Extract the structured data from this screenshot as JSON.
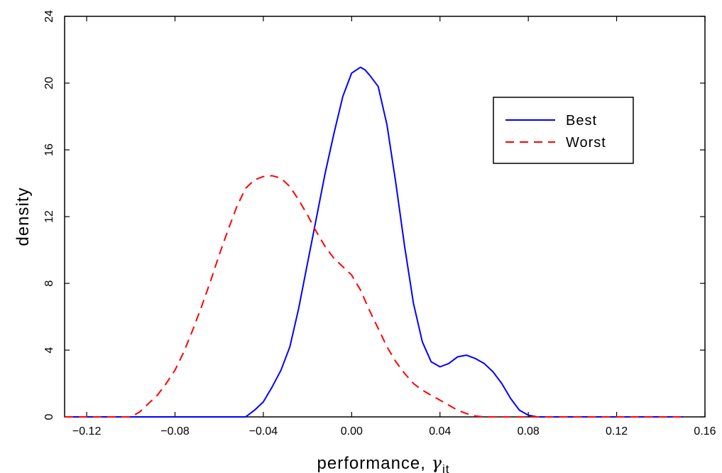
{
  "chart_data": {
    "type": "line",
    "title": "",
    "xlabel": "performance, ",
    "xlabel_symbol": "γ",
    "xlabel_subscript": "it",
    "ylabel": "density",
    "xlim": [
      -0.13,
      0.16
    ],
    "ylim": [
      0,
      24
    ],
    "x_ticks": [
      -0.12,
      -0.08,
      -0.04,
      0.0,
      0.04,
      0.08,
      0.12,
      0.16
    ],
    "x_tick_labels": [
      "−0.12",
      "−0.08",
      "−0.04",
      "0.00",
      "0.04",
      "0.08",
      "0.12",
      "0.16"
    ],
    "y_ticks": [
      0,
      4,
      8,
      12,
      16,
      20,
      24
    ],
    "y_tick_labels": [
      "0",
      "4",
      "8",
      "12",
      "16",
      "20",
      "24"
    ],
    "grid": false,
    "legend_position": "top-right",
    "series": [
      {
        "name": "Best",
        "color": "#0000ff",
        "style": "solid",
        "x": [
          -0.13,
          -0.048,
          -0.044,
          -0.04,
          -0.036,
          -0.032,
          -0.028,
          -0.024,
          -0.02,
          -0.016,
          -0.012,
          -0.008,
          -0.004,
          0.0,
          0.004,
          0.006,
          0.008,
          0.012,
          0.016,
          0.02,
          0.024,
          0.028,
          0.032,
          0.036,
          0.04,
          0.044,
          0.048,
          0.052,
          0.056,
          0.06,
          0.064,
          0.068,
          0.072,
          0.076,
          0.08,
          0.084,
          0.15
        ],
        "values": [
          0,
          0,
          0.4,
          0.9,
          1.8,
          2.8,
          4.2,
          6.5,
          9.2,
          11.9,
          14.6,
          17.0,
          19.2,
          20.6,
          20.95,
          20.8,
          20.5,
          19.8,
          17.5,
          14.0,
          10.2,
          6.8,
          4.5,
          3.3,
          3.0,
          3.2,
          3.6,
          3.7,
          3.5,
          3.2,
          2.7,
          2.0,
          1.1,
          0.4,
          0.1,
          0,
          0
        ]
      },
      {
        "name": "Worst",
        "color": "#ff0000",
        "style": "dashed",
        "x": [
          -0.13,
          -0.1,
          -0.096,
          -0.092,
          -0.088,
          -0.084,
          -0.08,
          -0.076,
          -0.072,
          -0.068,
          -0.064,
          -0.06,
          -0.056,
          -0.052,
          -0.048,
          -0.044,
          -0.04,
          -0.036,
          -0.032,
          -0.028,
          -0.024,
          -0.02,
          -0.016,
          -0.012,
          -0.008,
          -0.004,
          0.0,
          0.004,
          0.008,
          0.012,
          0.016,
          0.02,
          0.024,
          0.028,
          0.032,
          0.036,
          0.04,
          0.044,
          0.048,
          0.052,
          0.056,
          0.06,
          0.15
        ],
        "values": [
          0,
          0,
          0.3,
          0.8,
          1.3,
          2.0,
          2.8,
          3.9,
          5.2,
          6.6,
          8.1,
          9.7,
          11.2,
          12.6,
          13.7,
          14.2,
          14.4,
          14.45,
          14.3,
          13.8,
          13.0,
          12.1,
          11.1,
          10.2,
          9.5,
          9.0,
          8.5,
          7.6,
          6.4,
          5.3,
          4.2,
          3.3,
          2.6,
          2.0,
          1.6,
          1.3,
          1.0,
          0.7,
          0.4,
          0.2,
          0.05,
          0,
          0
        ]
      }
    ]
  }
}
